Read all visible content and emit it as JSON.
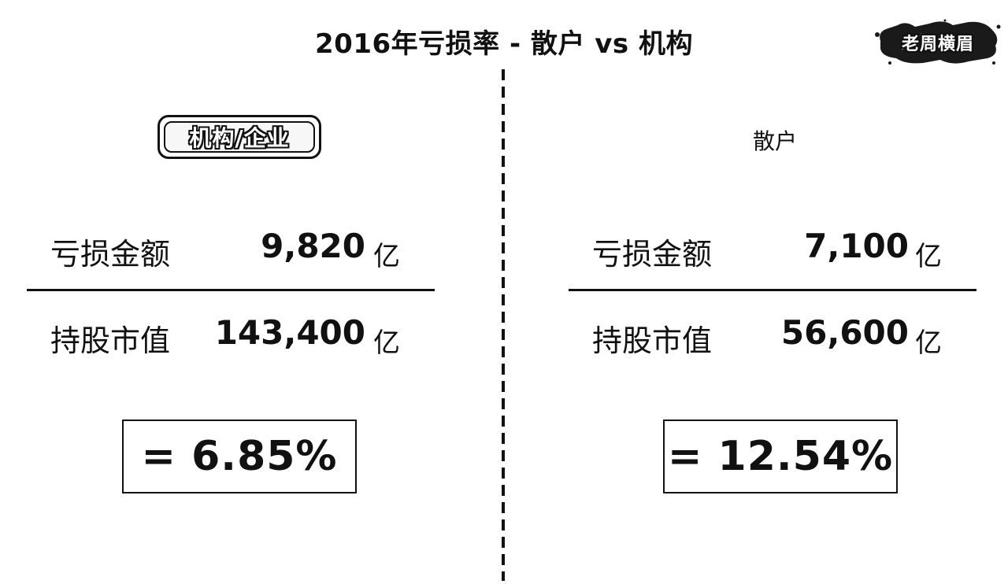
{
  "title": "2016年亏损率 - 散户 vs 机构",
  "logo": {
    "text": "老周横眉"
  },
  "left": {
    "header": "机构/企业",
    "loss_label": "亏损金额",
    "loss_value": "9,820",
    "loss_unit": "亿",
    "holding_label": "持股市值",
    "holding_value": "143,400",
    "holding_unit": "亿",
    "result": "= 6.85%"
  },
  "right": {
    "header": "散户",
    "loss_label": "亏损金额",
    "loss_value": "7,100",
    "loss_unit": "亿",
    "holding_label": "持股市值",
    "holding_value": "56,600",
    "holding_unit": "亿",
    "result": "= 12.54%"
  }
}
